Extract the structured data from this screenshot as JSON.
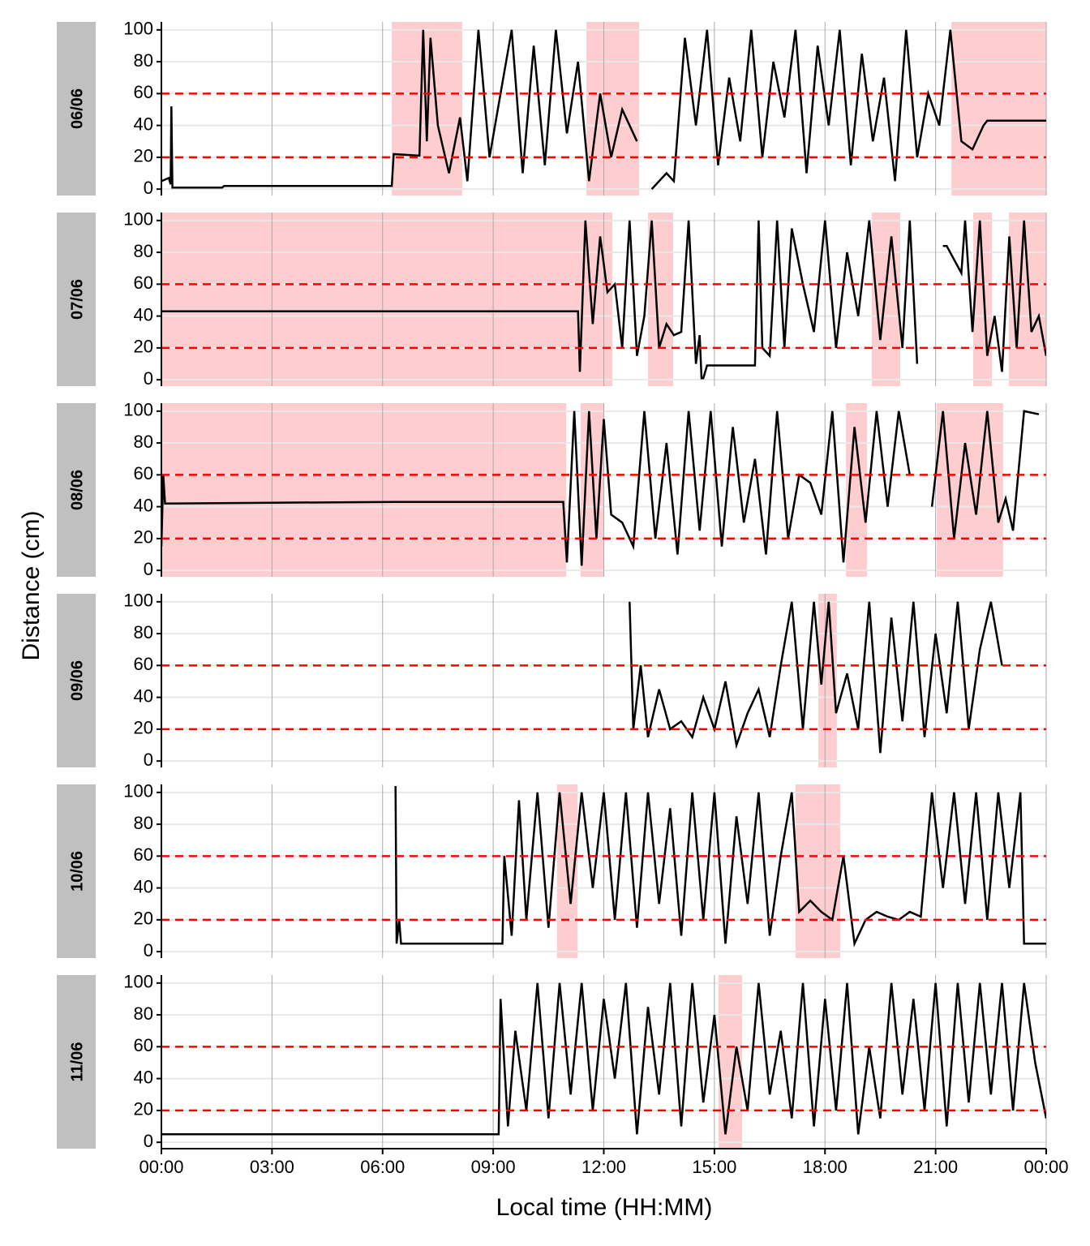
{
  "chart_data": {
    "type": "line",
    "x_label": "Local time (HH:MM)",
    "y_label": "Distance (cm)",
    "xlim": [
      0,
      24
    ],
    "xticks": [
      {
        "value": 0,
        "label": "00:00"
      },
      {
        "value": 3,
        "label": "03:00"
      },
      {
        "value": 6,
        "label": "06:00"
      },
      {
        "value": 9,
        "label": "09:00"
      },
      {
        "value": 12,
        "label": "12:00"
      },
      {
        "value": 15,
        "label": "15:00"
      },
      {
        "value": 18,
        "label": "18:00"
      },
      {
        "value": 21,
        "label": "21:00"
      },
      {
        "value": 24,
        "label": "00:00"
      }
    ],
    "ylim": [
      -4,
      105
    ],
    "yticks": [
      0,
      20,
      40,
      60,
      80,
      100
    ],
    "grid": true,
    "color": "#000000",
    "hlines": [
      20,
      60
    ],
    "hline_color": "#ff0000",
    "shade_color": "#fdcdcf",
    "panels": [
      {
        "label": "06/06",
        "x": [
          0,
          0.2,
          0.25,
          0.27,
          0.3,
          1.65,
          1.7,
          6.25,
          6.3,
          7.0,
          7.1,
          7.2,
          7.3,
          7.5,
          7.8,
          8.1,
          8.3,
          8.6,
          8.9,
          9.2,
          9.5,
          9.8,
          10.1,
          10.4,
          10.7,
          11.0,
          11.3,
          11.6,
          11.9,
          12.2,
          12.5,
          12.9,
          13.0,
          13.3,
          13.7,
          13.9,
          14.2,
          14.5,
          14.8,
          15.1,
          15.4,
          15.7,
          16.0,
          16.3,
          16.6,
          16.9,
          17.2,
          17.5,
          17.8,
          18.1,
          18.4,
          18.7,
          19.0,
          19.3,
          19.6,
          19.9,
          20.2,
          20.5,
          20.8,
          21.1,
          21.4,
          21.7,
          22.0,
          22.3,
          22.4,
          24
        ],
        "values": [
          5,
          7,
          3,
          52,
          1,
          1,
          2,
          2,
          22,
          21,
          100,
          30,
          95,
          40,
          10,
          45,
          5,
          100,
          20,
          60,
          100,
          10,
          90,
          15,
          100,
          35,
          80,
          5,
          60,
          20,
          50,
          30,
          null,
          0,
          10,
          5,
          95,
          40,
          100,
          15,
          70,
          30,
          100,
          20,
          80,
          45,
          100,
          10,
          90,
          40,
          100,
          15,
          85,
          30,
          70,
          5,
          100,
          20,
          60,
          40,
          100,
          30,
          25,
          40,
          43,
          43
        ],
        "shaded": [
          [
            6.25,
            8.16
          ],
          [
            11.53,
            12.96
          ],
          [
            21.43,
            24
          ]
        ]
      },
      {
        "label": "07/06",
        "x": [
          0,
          11.3,
          11.35,
          11.5,
          11.7,
          11.9,
          12.1,
          12.3,
          12.5,
          12.7,
          12.9,
          13.1,
          13.3,
          13.5,
          13.7,
          13.9,
          14.1,
          14.3,
          14.5,
          14.6,
          14.65,
          14.7,
          14.8,
          16.1,
          16.2,
          16.3,
          16.5,
          16.7,
          16.9,
          17.1,
          17.4,
          17.7,
          18.0,
          18.3,
          18.6,
          18.9,
          19.2,
          19.5,
          19.8,
          20.1,
          20.3,
          20.5,
          20.7,
          21.2,
          21.3,
          21.7,
          21.8,
          22.0,
          22.2,
          22.4,
          22.6,
          22.8,
          23.0,
          23.2,
          23.4,
          23.6,
          23.8,
          24
        ],
        "values": [
          43,
          43,
          5,
          100,
          35,
          90,
          55,
          60,
          20,
          100,
          15,
          40,
          100,
          20,
          35,
          28,
          30,
          100,
          10,
          28,
          1,
          1,
          9,
          9,
          100,
          20,
          15,
          100,
          20,
          95,
          60,
          30,
          100,
          20,
          80,
          40,
          100,
          25,
          90,
          20,
          100,
          10,
          null,
          84,
          84,
          67,
          100,
          30,
          100,
          15,
          40,
          5,
          90,
          20,
          100,
          30,
          40,
          15
        ],
        "shaded": [
          [
            0,
            12.23
          ],
          [
            13.2,
            13.88
          ],
          [
            19.27,
            20.04
          ],
          [
            22.02,
            22.53
          ],
          [
            22.99,
            24
          ]
        ]
      },
      {
        "label": "08/06",
        "x": [
          0,
          0.05,
          0.1,
          6.3,
          10.9,
          11.0,
          11.2,
          11.4,
          11.6,
          11.8,
          12.0,
          12.2,
          12.5,
          12.8,
          13.1,
          13.4,
          13.7,
          14.0,
          14.3,
          14.6,
          14.9,
          15.2,
          15.5,
          15.8,
          16.1,
          16.4,
          16.7,
          17.0,
          17.3,
          17.6,
          17.9,
          18.2,
          18.5,
          18.8,
          19.1,
          19.4,
          19.7,
          20.0,
          20.3,
          20.6,
          20.9,
          21.2,
          21.5,
          21.8,
          22.1,
          22.4,
          22.7,
          22.9,
          23.1,
          23.4,
          23.8
        ],
        "values": [
          15,
          60,
          42,
          43,
          43,
          5,
          100,
          3,
          100,
          20,
          95,
          35,
          30,
          15,
          100,
          20,
          80,
          10,
          100,
          25,
          100,
          15,
          90,
          30,
          70,
          10,
          100,
          20,
          60,
          55,
          35,
          100,
          5,
          90,
          30,
          100,
          40,
          100,
          60,
          null,
          40,
          100,
          20,
          80,
          35,
          100,
          30,
          45,
          25,
          100,
          98
        ],
        "shaded": [
          [
            0,
            10.98
          ],
          [
            11.37,
            12.01
          ],
          [
            18.57,
            19.14
          ],
          [
            21.03,
            22.83
          ]
        ]
      },
      {
        "label": "09/06",
        "x": [
          12.7,
          12.8,
          13.0,
          13.2,
          13.5,
          13.8,
          14.1,
          14.4,
          14.7,
          15.0,
          15.3,
          15.6,
          15.9,
          16.2,
          16.5,
          16.8,
          17.1,
          17.4,
          17.7,
          17.9,
          18.1,
          18.3,
          18.6,
          18.9,
          19.2,
          19.5,
          19.8,
          20.1,
          20.4,
          20.7,
          21.0,
          21.3,
          21.6,
          21.9,
          22.2,
          22.5,
          22.8
        ],
        "values": [
          100,
          20,
          60,
          15,
          45,
          20,
          25,
          15,
          40,
          20,
          50,
          10,
          30,
          45,
          15,
          60,
          100,
          20,
          100,
          48,
          100,
          30,
          55,
          20,
          100,
          5,
          90,
          25,
          100,
          15,
          80,
          30,
          100,
          20,
          70,
          100,
          60
        ],
        "shaded": [
          [
            17.82,
            18.32
          ]
        ]
      },
      {
        "label": "10/06",
        "x": [
          6.35,
          6.38,
          6.45,
          6.5,
          6.55,
          9.25,
          9.3,
          9.5,
          9.7,
          9.9,
          10.2,
          10.5,
          10.8,
          11.1,
          11.4,
          11.7,
          12.0,
          12.3,
          12.6,
          12.9,
          13.2,
          13.5,
          13.8,
          14.1,
          14.4,
          14.7,
          15.0,
          15.3,
          15.6,
          15.9,
          16.2,
          16.5,
          16.8,
          17.1,
          17.3,
          17.6,
          17.9,
          18.2,
          18.5,
          18.8,
          19.1,
          19.4,
          19.7,
          20.0,
          20.3,
          20.6,
          20.9,
          21.2,
          21.5,
          21.8,
          22.1,
          22.4,
          22.7,
          23.0,
          23.3,
          23.4,
          24
        ],
        "values": [
          104,
          5,
          20,
          5,
          5,
          5,
          60,
          10,
          95,
          20,
          100,
          15,
          100,
          30,
          100,
          40,
          100,
          20,
          100,
          15,
          100,
          30,
          90,
          10,
          100,
          20,
          100,
          5,
          85,
          30,
          100,
          10,
          60,
          100,
          25,
          32,
          25,
          20,
          60,
          5,
          20,
          25,
          22,
          20,
          25,
          22,
          100,
          40,
          100,
          30,
          100,
          20,
          100,
          40,
          100,
          5,
          5
        ],
        "shaded": [
          [
            10.73,
            11.29
          ],
          [
            17.2,
            18.41
          ]
        ]
      },
      {
        "label": "11/06",
        "x": [
          0,
          9.15,
          9.2,
          9.4,
          9.6,
          9.9,
          10.2,
          10.5,
          10.8,
          11.1,
          11.4,
          11.7,
          12.0,
          12.3,
          12.6,
          12.9,
          13.2,
          13.5,
          13.8,
          14.1,
          14.4,
          14.7,
          15.0,
          15.3,
          15.6,
          15.9,
          16.2,
          16.5,
          16.8,
          17.1,
          17.4,
          17.7,
          18.0,
          18.3,
          18.6,
          18.9,
          19.2,
          19.5,
          19.8,
          20.1,
          20.4,
          20.7,
          21.0,
          21.3,
          21.6,
          21.9,
          22.2,
          22.5,
          22.8,
          23.1,
          23.4,
          23.7,
          24
        ],
        "values": [
          5,
          5,
          90,
          10,
          70,
          20,
          100,
          15,
          100,
          30,
          100,
          20,
          90,
          40,
          100,
          5,
          85,
          30,
          100,
          10,
          100,
          25,
          80,
          5,
          60,
          20,
          100,
          30,
          70,
          15,
          100,
          10,
          90,
          20,
          100,
          5,
          60,
          15,
          100,
          30,
          90,
          20,
          100,
          10,
          100,
          25,
          100,
          30,
          100,
          20,
          100,
          50,
          15
        ],
        "shaded": [
          [
            15.11,
            15.75
          ]
        ]
      }
    ]
  }
}
